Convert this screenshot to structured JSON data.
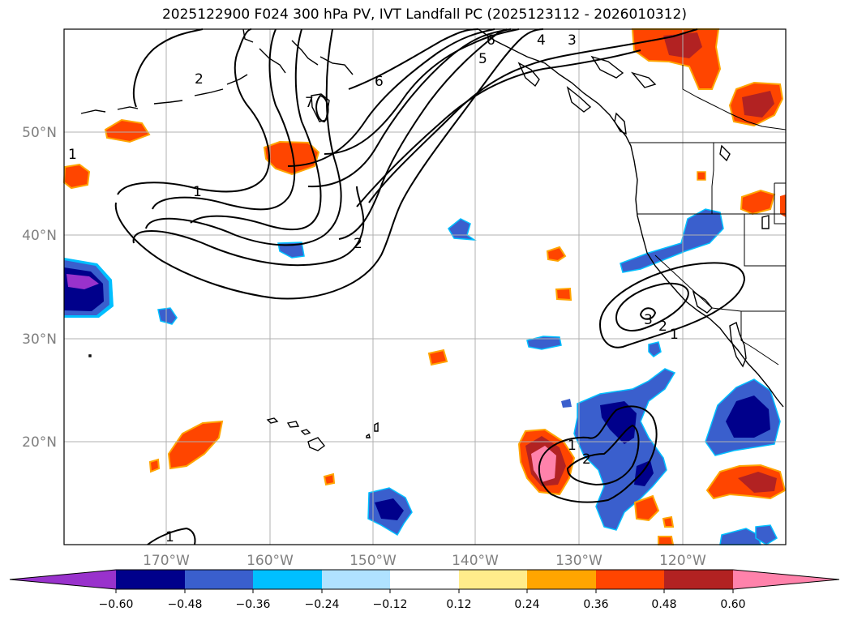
{
  "title": "2025122900 F024 300 hPa PV, IVT Landfall PC (2025123112 - 2026010312)",
  "lat_labels": [
    "50°N",
    "40°N",
    "30°N",
    "20°N"
  ],
  "lon_labels": [
    "170°W",
    "160°W",
    "150°W",
    "140°W",
    "130°W",
    "120°W"
  ],
  "contour_labels": [
    "1",
    "2",
    "6",
    "5",
    "6",
    "4",
    "3",
    "7",
    "1",
    "2",
    "1",
    "2",
    "3",
    "1",
    "2",
    "1"
  ],
  "colorbar": {
    "ticks": [
      "−0.60",
      "−0.48",
      "−0.36",
      "−0.24",
      "−0.12",
      "0.12",
      "0.24",
      "0.36",
      "0.48",
      "0.60"
    ],
    "colors": [
      "#9932cc",
      "#00008b",
      "#3a5fcd",
      "#00bfff",
      "#b0e2ff",
      "#ffffff",
      "#ffec8b",
      "#ffa500",
      "#ff4500",
      "#b22222",
      "#ff82ab"
    ]
  },
  "colors": {
    "purple": "#9932cc",
    "navy": "#00008b",
    "blue": "#3a5fcd",
    "cyan": "#00bfff",
    "lightblue": "#b0e2ff",
    "yellow": "#ffec8b",
    "orange": "#ffa500",
    "red": "#ff4500",
    "firebrick": "#b22222",
    "pink": "#ff82ab"
  }
}
